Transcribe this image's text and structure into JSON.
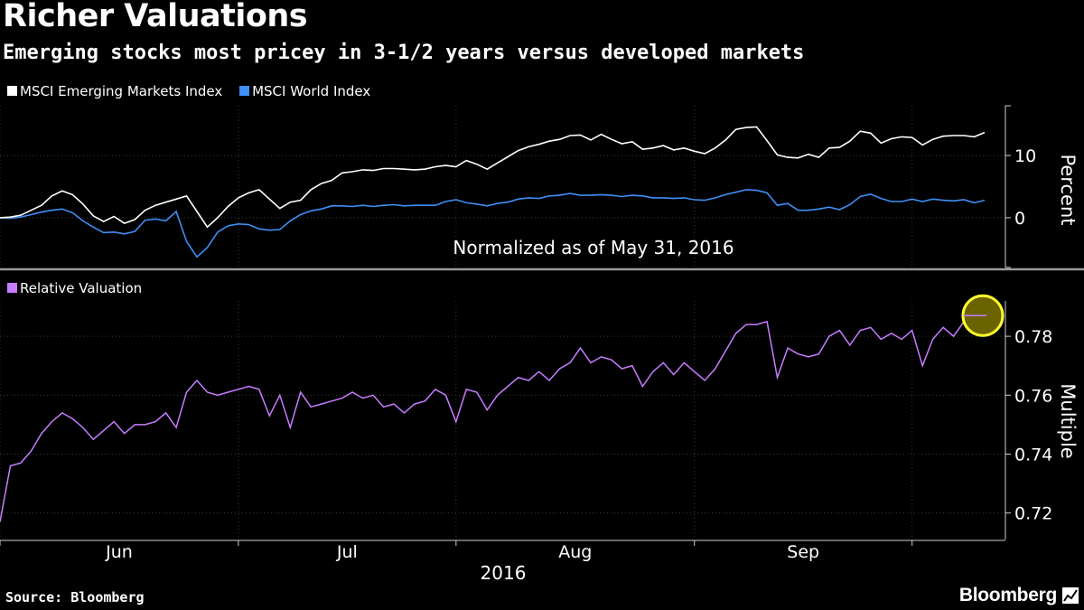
{
  "header": {
    "title": "Richer Valuations",
    "subtitle": "Emerging stocks most pricey in 3-1/2 years versus developed markets"
  },
  "footer": {
    "source": "Source: Bloomberg",
    "brand": "Bloomberg"
  },
  "chart_data": [
    {
      "type": "line",
      "title": "",
      "ylabel": "Percent",
      "ylim": [
        -8,
        18
      ],
      "yticks": [
        0,
        10
      ],
      "annotation": "Normalized as of May 31, 2016",
      "grid": true,
      "legend": "top-left",
      "x_range": [
        "2016-05-31",
        "2016-09-22"
      ],
      "series": [
        {
          "name": "MSCI Emerging Markets Index",
          "color": "#ffffff",
          "values": [
            0.0,
            0.1,
            0.4,
            1.2,
            2.0,
            3.5,
            4.3,
            3.7,
            2.2,
            0.3,
            -0.6,
            0.2,
            -0.9,
            -0.3,
            1.2,
            2.0,
            2.5,
            3.0,
            3.5,
            1.0,
            -1.5,
            0.0,
            1.8,
            3.2,
            4.0,
            4.5,
            3.0,
            1.5,
            2.5,
            2.8,
            4.5,
            5.5,
            6.0,
            7.2,
            7.4,
            7.7,
            7.6,
            7.9,
            7.9,
            7.8,
            7.7,
            7.8,
            8.2,
            8.4,
            8.2,
            9.2,
            8.6,
            7.8,
            8.8,
            9.8,
            10.8,
            11.4,
            11.8,
            12.3,
            12.6,
            13.2,
            13.3,
            12.5,
            13.4,
            12.6,
            11.9,
            12.2,
            11.0,
            11.2,
            11.6,
            10.9,
            11.2,
            10.7,
            10.3,
            11.2,
            12.5,
            14.2,
            14.5,
            14.6,
            12.4,
            10.1,
            9.7,
            9.6,
            10.2,
            9.7,
            11.2,
            11.3,
            12.3,
            13.9,
            13.6,
            12.0,
            12.7,
            13.0,
            12.9,
            11.7,
            12.6,
            13.1,
            13.2,
            13.2,
            13.0,
            13.7
          ]
        },
        {
          "name": "MSCI World Index",
          "color": "#3f8ff5",
          "values": [
            0.0,
            -0.1,
            0.1,
            0.5,
            0.9,
            1.2,
            1.4,
            0.8,
            -0.5,
            -1.5,
            -2.4,
            -2.3,
            -2.6,
            -2.2,
            -0.4,
            -0.2,
            -0.5,
            1.0,
            -3.8,
            -6.3,
            -4.8,
            -2.3,
            -1.3,
            -1.0,
            -1.1,
            -1.8,
            -2.0,
            -1.9,
            -0.5,
            0.5,
            1.1,
            1.4,
            1.9,
            1.9,
            1.8,
            2.0,
            1.8,
            2.0,
            2.1,
            1.9,
            2.0,
            2.0,
            2.0,
            2.6,
            2.9,
            2.4,
            2.2,
            1.9,
            2.3,
            2.5,
            3.0,
            3.2,
            3.1,
            3.5,
            3.6,
            3.9,
            3.6,
            3.6,
            3.7,
            3.6,
            3.4,
            3.6,
            3.5,
            3.2,
            3.2,
            3.1,
            3.2,
            2.9,
            2.8,
            3.2,
            3.7,
            4.1,
            4.5,
            4.4,
            4.0,
            2.0,
            2.3,
            1.2,
            1.2,
            1.4,
            1.7,
            1.3,
            2.1,
            3.4,
            3.8,
            3.1,
            2.6,
            2.6,
            3.0,
            2.6,
            3.0,
            2.8,
            2.7,
            2.9,
            2.4,
            2.8
          ]
        }
      ]
    },
    {
      "type": "line",
      "title": "",
      "ylabel": "Multiple",
      "ylim": [
        0.711,
        0.792
      ],
      "yticks": [
        0.72,
        0.74,
        0.76,
        0.78
      ],
      "grid": true,
      "legend": "top-left",
      "x_ticks": [
        "Jun",
        "Jul",
        "Aug",
        "Sep"
      ],
      "x_year": "2016",
      "highlight_last": true,
      "series": [
        {
          "name": "Relative Valuation",
          "color": "#c77dff",
          "values": [
            0.717,
            0.736,
            0.737,
            0.741,
            0.747,
            0.751,
            0.754,
            0.752,
            0.749,
            0.745,
            0.748,
            0.751,
            0.747,
            0.75,
            0.75,
            0.751,
            0.754,
            0.749,
            0.761,
            0.765,
            0.761,
            0.76,
            0.761,
            0.762,
            0.763,
            0.762,
            0.753,
            0.76,
            0.749,
            0.761,
            0.756,
            0.757,
            0.758,
            0.759,
            0.761,
            0.759,
            0.76,
            0.756,
            0.757,
            0.754,
            0.757,
            0.758,
            0.762,
            0.76,
            0.751,
            0.762,
            0.761,
            0.755,
            0.76,
            0.763,
            0.766,
            0.765,
            0.768,
            0.765,
            0.769,
            0.771,
            0.776,
            0.771,
            0.773,
            0.772,
            0.769,
            0.77,
            0.763,
            0.768,
            0.771,
            0.767,
            0.771,
            0.768,
            0.765,
            0.769,
            0.775,
            0.781,
            0.784,
            0.784,
            0.785,
            0.766,
            0.776,
            0.774,
            0.773,
            0.774,
            0.78,
            0.782,
            0.777,
            0.782,
            0.783,
            0.779,
            0.781,
            0.779,
            0.782,
            0.77,
            0.779,
            0.783,
            0.78,
            0.785,
            0.787,
            0.787
          ]
        }
      ]
    }
  ]
}
